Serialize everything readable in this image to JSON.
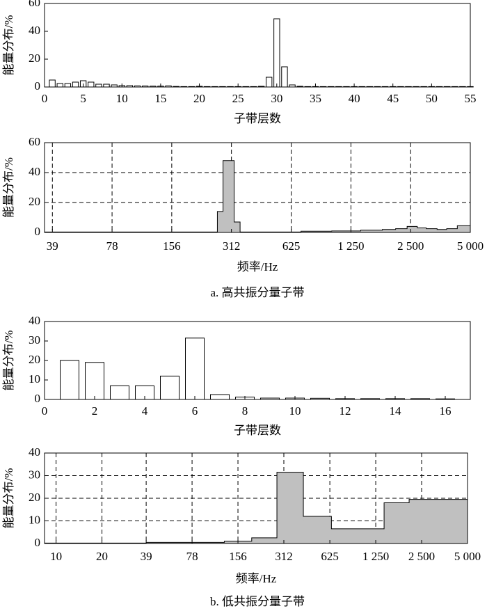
{
  "chart_data": [
    {
      "type": "bar",
      "xlabel": "子带层数",
      "ylabel": "能量分布/%",
      "x": [
        1,
        2,
        3,
        4,
        5,
        6,
        7,
        8,
        9,
        10,
        11,
        12,
        13,
        14,
        15,
        16,
        17,
        18,
        19,
        20,
        21,
        22,
        23,
        24,
        25,
        26,
        27,
        28,
        29,
        30,
        31,
        32,
        33,
        34,
        35,
        36,
        37,
        38,
        39,
        40,
        41,
        42,
        43,
        44,
        45,
        46,
        47,
        48,
        49,
        50,
        51,
        52,
        53,
        54,
        55
      ],
      "values": [
        5,
        2.5,
        2.5,
        3.5,
        4.5,
        3.5,
        2,
        2,
        1.5,
        1,
        1,
        0.8,
        0.7,
        0.6,
        0.6,
        0.8,
        0.4,
        0.3,
        0.3,
        0.5,
        0.3,
        0.3,
        0.3,
        0.3,
        0.3,
        0.3,
        0.3,
        0.5,
        7,
        49,
        14.5,
        1.5,
        0.5,
        0.3,
        0.3,
        0.3,
        0.3,
        0.3,
        0.3,
        0.3,
        0.3,
        0.3,
        0.3,
        0.3,
        0.3,
        0.3,
        0.3,
        0.3,
        0.3,
        0.3,
        0.3,
        0.3,
        0.3,
        0.3,
        0.3
      ],
      "color": "#ffffff",
      "xlim": [
        0,
        55
      ],
      "xticks": [
        0,
        5,
        10,
        15,
        20,
        25,
        30,
        35,
        40,
        45,
        50,
        55
      ],
      "ylim": [
        0,
        60
      ],
      "yticks": [
        0,
        20,
        40,
        60
      ],
      "grid": false
    },
    {
      "type": "histogram",
      "xlabel": "频率/Hz",
      "ylabel": "能量分布/%",
      "xscale": "log",
      "bins": [
        35.6,
        265,
        283,
        322,
        345,
        700,
        1000,
        1400,
        1800,
        2100,
        2400,
        2700,
        3000,
        3400,
        3800,
        4300,
        5000
      ],
      "values": [
        0.3,
        14,
        48,
        7,
        0.3,
        0.8,
        1,
        1.5,
        2,
        2.5,
        4,
        3,
        2.5,
        2,
        2.5,
        4.5
      ],
      "color": "#c0c0c0",
      "xlim": [
        35.6,
        5000
      ],
      "xticks": [
        39,
        78,
        156,
        312,
        625,
        {
          "value": 1250,
          "label": "1 250"
        },
        {
          "value": 2500,
          "label": "2 500"
        },
        {
          "value": 5000,
          "label": "5 000"
        }
      ],
      "ylim": [
        0,
        60
      ],
      "yticks": [
        0,
        20,
        40,
        60
      ],
      "grid": true
    },
    {
      "type": "bar",
      "xlabel": "子带层数",
      "ylabel": "能量分布/%",
      "x": [
        1,
        2,
        3,
        4,
        5,
        6,
        7,
        8,
        9,
        10,
        11,
        12,
        13,
        14,
        15,
        16
      ],
      "values": [
        20,
        19,
        7,
        7,
        12,
        31.5,
        2.5,
        1.2,
        0.7,
        0.7,
        0.6,
        0.4,
        0.4,
        0.4,
        0.4,
        0.3
      ],
      "color": "#ffffff",
      "xlim": [
        0,
        17
      ],
      "xticks": [
        0,
        2,
        4,
        6,
        8,
        10,
        12,
        14,
        16
      ],
      "ylim": [
        0,
        40
      ],
      "yticks": [
        0,
        10,
        20,
        30,
        40
      ],
      "grid": false
    },
    {
      "type": "histogram",
      "xlabel": "频率/Hz",
      "ylabel": "能量分布/%",
      "xscale": "log",
      "bins": [
        8.4,
        39,
        127,
        192,
        281,
        419,
        640,
        1418,
        2070,
        5000
      ],
      "values": [
        0.2,
        0.5,
        1,
        2.5,
        31.5,
        12,
        6.5,
        18,
        19.5
      ],
      "color": "#c0c0c0",
      "xlim": [
        8.4,
        5000
      ],
      "xticks": [
        10,
        20,
        39,
        78,
        156,
        312,
        625,
        {
          "value": 1250,
          "label": "1 250"
        },
        {
          "value": 2500,
          "label": "2 500"
        },
        {
          "value": 5000,
          "label": "5 000"
        }
      ],
      "ylim": [
        0,
        40
      ],
      "yticks": [
        0,
        10,
        20,
        30,
        40
      ],
      "grid": true
    }
  ],
  "captions": [
    "a. 高共振分量子带",
    "b. 低共振分量子带"
  ]
}
